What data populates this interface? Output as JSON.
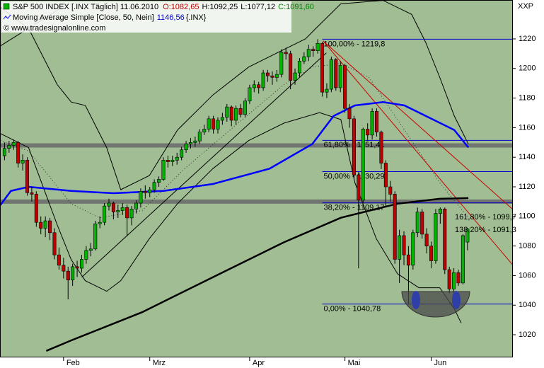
{
  "chart_data": {
    "type": "candlestick",
    "title": "S&P 500 INDEX [.INX  Täglich] 11.06.2010",
    "ohlc_labels": [
      "O:1082,65",
      "H:1092,25",
      "L:1077,12",
      "C:1091,60"
    ],
    "indicator": "Moving Average Simple [Close, 50, Nein]",
    "indicator_value": "1146,56",
    "indicator_symbol": "{.INX}",
    "copyright": "© www.tradesignalonline.com",
    "corner_label": "XXP",
    "up_color": "#00b400",
    "down_color": "#c00000",
    "background": "#a0bd93",
    "x": [
      0,
      1,
      2,
      3,
      4,
      5,
      6,
      7,
      8,
      9,
      10,
      11,
      12,
      13,
      14,
      15,
      16,
      17,
      18,
      19,
      20,
      21,
      22,
      23,
      24,
      25,
      26,
      27,
      28,
      29,
      30,
      31,
      32,
      33,
      34,
      35,
      36,
      37,
      38,
      39,
      40,
      41,
      42,
      43,
      44,
      45,
      46,
      47,
      48,
      49,
      50,
      51,
      52,
      53,
      54,
      55,
      56,
      57,
      58,
      59,
      60,
      61,
      62,
      63,
      64,
      65,
      66,
      67,
      68,
      69,
      70,
      71,
      72,
      73,
      74,
      75,
      76,
      77,
      78,
      79,
      80,
      81,
      82,
      83,
      84,
      85,
      86,
      87,
      88,
      89,
      90,
      91,
      92,
      93,
      94,
      95,
      96,
      97,
      98,
      99,
      100,
      101,
      102
    ],
    "open": [
      1141,
      1146,
      1148,
      1150,
      1136,
      1138,
      1116,
      1115,
      1096,
      1092,
      1097,
      1089,
      1074,
      1067,
      1063,
      1057,
      1066,
      1065,
      1071,
      1077,
      1078,
      1095,
      1096,
      1107,
      1109,
      1103,
      1104,
      1106,
      1099,
      1105,
      1109,
      1117,
      1116,
      1118,
      1123,
      1125,
      1138,
      1137,
      1138,
      1140,
      1145,
      1149,
      1150,
      1151,
      1157,
      1159,
      1166,
      1159,
      1165,
      1167,
      1174,
      1165,
      1173,
      1169,
      1178,
      1187,
      1189,
      1187,
      1197,
      1195,
      1194,
      1196,
      1211,
      1210,
      1192,
      1197,
      1205,
      1208,
      1213,
      1212,
      1217,
      1184,
      1186,
      1206,
      1187,
      1202,
      1173,
      1166,
      1128,
      1111,
      1159,
      1155,
      1171,
      1157,
      1136,
      1120,
      1115,
      1071,
      1087,
      1074,
      1067,
      1089,
      1103,
      1088,
      1080,
      1070,
      1102,
      1105,
      1064,
      1051,
      1062,
      1055,
      1082.65
    ],
    "high": [
      1150,
      1151,
      1152,
      1151,
      1142,
      1140,
      1120,
      1117,
      1100,
      1100,
      1099,
      1092,
      1079,
      1072,
      1066,
      1068,
      1070,
      1074,
      1080,
      1082,
      1097,
      1100,
      1109,
      1112,
      1110,
      1108,
      1109,
      1108,
      1107,
      1111,
      1119,
      1121,
      1120,
      1125,
      1127,
      1140,
      1141,
      1141,
      1143,
      1147,
      1151,
      1153,
      1154,
      1159,
      1162,
      1168,
      1168,
      1167,
      1170,
      1176,
      1175,
      1175,
      1176,
      1180,
      1189,
      1192,
      1191,
      1199,
      1199,
      1198,
      1199,
      1213,
      1214,
      1212,
      1200,
      1207,
      1211,
      1216,
      1215,
      1219.8,
      1218,
      1190,
      1208,
      1207,
      1205,
      1203,
      1176,
      1168,
      1130,
      1160,
      1163,
      1173,
      1173,
      1158,
      1138,
      1124,
      1117,
      1091,
      1090,
      1080,
      1091,
      1106,
      1105,
      1092,
      1083,
      1105,
      1106,
      1106,
      1066,
      1065,
      1064,
      1088,
      1092.25
    ],
    "low": [
      1138,
      1143,
      1145,
      1133,
      1131,
      1114,
      1110,
      1093,
      1088,
      1086,
      1084,
      1071,
      1064,
      1058,
      1044,
      1053,
      1059,
      1062,
      1068,
      1073,
      1077,
      1092,
      1094,
      1104,
      1098,
      1099,
      1101,
      1087,
      1094,
      1102,
      1106,
      1112,
      1113,
      1116,
      1120,
      1124,
      1133,
      1134,
      1135,
      1138,
      1143,
      1146,
      1147,
      1149,
      1155,
      1157,
      1156,
      1156,
      1162,
      1164,
      1161,
      1162,
      1167,
      1167,
      1176,
      1184,
      1183,
      1185,
      1191,
      1189,
      1191,
      1194,
      1206,
      1186,
      1189,
      1194,
      1203,
      1205,
      1208,
      1210,
      1181,
      1180,
      1184,
      1185,
      1184,
      1170,
      1160,
      1125,
      1065,
      1109,
      1151,
      1152,
      1154,
      1132,
      1107,
      1110,
      1068,
      1055,
      1067,
      1040.78,
      1064,
      1086,
      1085,
      1075,
      1065,
      1068,
      1095,
      1061,
      1048,
      1042,
      1053,
      1054,
      1077.12
    ],
    "close": [
      1146,
      1148,
      1150,
      1136,
      1138,
      1116,
      1115,
      1096,
      1092,
      1097,
      1089,
      1074,
      1067,
      1063,
      1057,
      1066,
      1065,
      1071,
      1077,
      1078,
      1095,
      1096,
      1107,
      1109,
      1103,
      1104,
      1106,
      1099,
      1105,
      1109,
      1117,
      1116,
      1118,
      1123,
      1125,
      1138,
      1137,
      1138,
      1140,
      1145,
      1149,
      1150,
      1151,
      1157,
      1159,
      1166,
      1159,
      1165,
      1167,
      1174,
      1165,
      1173,
      1169,
      1178,
      1187,
      1189,
      1187,
      1197,
      1195,
      1194,
      1196,
      1211,
      1210,
      1192,
      1197,
      1205,
      1208,
      1213,
      1212,
      1217,
      1184,
      1186,
      1206,
      1187,
      1202,
      1173,
      1166,
      1128,
      1111,
      1159,
      1155,
      1171,
      1157,
      1136,
      1120,
      1115,
      1071,
      1087,
      1074,
      1067,
      1089,
      1103,
      1088,
      1080,
      1070,
      1102,
      1105,
      1064,
      1051,
      1062,
      1055,
      1087,
      1091.6
    ],
    "xlim": [
      -1,
      112
    ],
    "xticks": [
      {
        "value": 13,
        "label": "Feb"
      },
      {
        "value": 32,
        "label": "Mrz"
      },
      {
        "value": 54,
        "label": "Apr"
      },
      {
        "value": 75,
        "label": "Mai"
      },
      {
        "value": 94,
        "label": "Jun"
      }
    ],
    "ylim": [
      1004.7,
      1246.3
    ],
    "yticks": [
      1020,
      1040,
      1060,
      1080,
      1100,
      1120,
      1140,
      1160,
      1180,
      1200,
      1220
    ],
    "lines": [
      {
        "color": "#000000",
        "style": "thin",
        "x": [
          -0.9,
          5.3,
          11.6,
          14.7,
          17.8,
          22.5,
          25.6,
          31.9,
          38.1,
          45.9,
          53.8,
          61.6,
          66.3,
          68.6,
          74.1,
          83.4,
          89.7,
          92.8,
          95.9,
          99.1,
          102.2
        ],
        "y": [
          1241.3,
          1227.1,
          1189.2,
          1177.3,
          1175,
          1146.5,
          1118.1,
          1127.6,
          1158.4,
          1182.1,
          1201,
          1212.9,
          1220,
          1227.1,
          1243.7,
          1246,
          1236.6,
          1217.6,
          1193.9,
          1167.9,
          1148.9
        ]
      },
      {
        "color": "#000000",
        "style": "thin",
        "x": [
          -0.9,
          5.3,
          11.6,
          14.7,
          17.8,
          22.5,
          25.6,
          31.9,
          38.1,
          45.9,
          53.8,
          61.6,
          69.4,
          74.1,
          77.2,
          81.9,
          86.6,
          91.3,
          95.9,
          99.1,
          100.6
        ],
        "y": [
          1156,
          1146.5,
          1094.4,
          1070.7,
          1056.5,
          1049.4,
          1056.5,
          1085,
          1108.6,
          1132.3,
          1151.3,
          1163.1,
          1170.2,
          1165.5,
          1122.8,
          1085,
          1061.2,
          1051.8,
          1051.8,
          1037.5,
          1028
        ]
      },
      {
        "color": "#303030",
        "style": "dotted",
        "x": [
          -0.9,
          5.3,
          14.7,
          20.9,
          30.3,
          39.7,
          50.6,
          61.6,
          67.8,
          74.1,
          80.3,
          89.7,
          95.9,
          102.2
        ],
        "y": [
          1151.3,
          1144.2,
          1108.6,
          1099.1,
          1103.9,
          1132.3,
          1160.8,
          1189.2,
          1201,
          1203.4,
          1193.9,
          1151.3,
          1122.8,
          1099.1
        ]
      },
      {
        "color": "#000000",
        "style": "thin",
        "x": [
          17,
          70.9
        ],
        "y": [
          1058.9,
          1210.5
        ]
      },
      {
        "color": "#000000",
        "style": "thin",
        "x": [
          -0.9,
          13.9
        ],
        "y": [
          1215.3,
          1243.7
        ]
      },
      {
        "color": "#cc0000",
        "style": "thin",
        "x": [
          70.2,
          112.3
        ],
        "y": [
          1218.6,
          1066
        ]
      },
      {
        "color": "#cc0000",
        "style": "thin",
        "x": [
          70.2,
          112.3
        ],
        "y": [
          1218.6,
          1103.9
        ]
      },
      {
        "color": "#000000",
        "style": "thick",
        "x": [
          9.2,
          14.7,
          30.3,
          45.9,
          61.6,
          74.1,
          86.6,
          95.9,
          102.2
        ],
        "y": [
          1009.1,
          1016.2,
          1035.2,
          1058.9,
          1082.6,
          1099.1,
          1108.6,
          1111.9,
          1112.4
        ]
      },
      {
        "color": "#0000ff",
        "style": "thick",
        "x": [
          -0.9,
          1.4,
          5.3,
          14.7,
          24.1,
          35,
          45.9,
          58.4,
          67.8,
          72.5,
          77.2,
          83.4,
          88.1,
          94.4,
          99.1,
          102.2
        ],
        "y": [
          1107.7,
          1117.2,
          1120,
          1117.2,
          1115.7,
          1117.2,
          1121.9,
          1132.3,
          1148.9,
          1167.9,
          1175,
          1177.3,
          1175,
          1165.5,
          1158.4,
          1146.6
        ]
      }
    ],
    "support": [
      1148,
      1110
    ],
    "support_color": "#6a6a6a",
    "levels_color": "#0000cc",
    "levels_from": 70,
    "levels": [
      {
        "value": 1219.8,
        "label": "100,00% - 1219,8"
      },
      {
        "value": 1151.41,
        "label": "61,80% - 1151,41"
      },
      {
        "value": 1130.29,
        "label": "50,00% - 1130,29"
      },
      {
        "value": 1109.17,
        "label": "38,20% - 1109,17"
      },
      {
        "value": 1040.78,
        "label": "0,00% - 1040,78"
      }
    ],
    "annotations": [
      "161,80% - 1099,7",
      "138,20% - 1091,3"
    ]
  }
}
